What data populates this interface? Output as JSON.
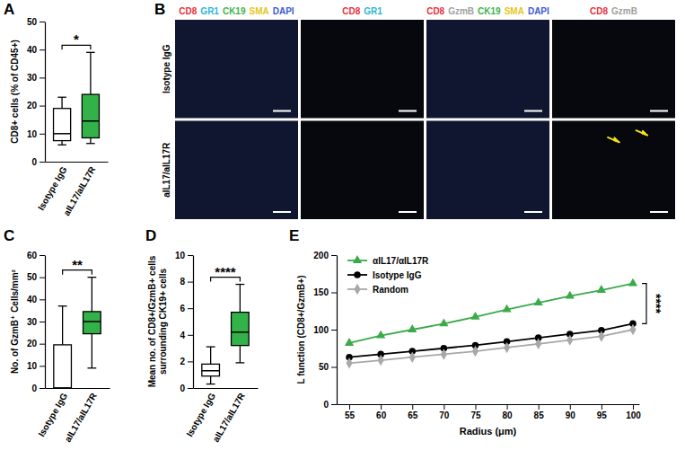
{
  "chart_data": [
    {
      "type": "box",
      "title": "A",
      "categories": [
        "Isotype IgG",
        "aIL17/aIL17R"
      ],
      "colors": [
        "#ffffff",
        "#33b24a"
      ],
      "boxes": [
        {
          "min": 6,
          "q1": 7.5,
          "median": 10,
          "q3": 19,
          "max": 23
        },
        {
          "min": 6.5,
          "q1": 8.5,
          "median": 14.5,
          "q3": 24,
          "max": 39
        }
      ],
      "ylim": [
        0,
        50
      ],
      "yticks": [
        0,
        10,
        20,
        30,
        40,
        50
      ],
      "y_label": [
        "CD8+ cells (% of CD45+)"
      ],
      "annotations": [
        "*"
      ]
    },
    {
      "type": "image",
      "title": "B",
      "columns": [
        [
          {
            "text": "CD8",
            "color": "#e8303a"
          },
          {
            "text": "GR1",
            "color": "#29b6d6"
          },
          {
            "text": "CK19",
            "color": "#3cb44b"
          },
          {
            "text": "SMA",
            "color": "#e6c619"
          },
          {
            "text": "DAPI",
            "color": "#3b5bd6"
          }
        ],
        [
          {
            "text": "CD8",
            "color": "#e8303a"
          },
          {
            "text": "GR1",
            "color": "#29b6d6"
          }
        ],
        [
          {
            "text": "CD8",
            "color": "#e8303a"
          },
          {
            "text": "GzmB",
            "color": "#a0a0a0"
          },
          {
            "text": "CK19",
            "color": "#3cb44b"
          },
          {
            "text": "SMA",
            "color": "#e6c619"
          },
          {
            "text": "DAPI",
            "color": "#3b5bd6"
          }
        ],
        [
          {
            "text": "CD8",
            "color": "#e8303a"
          },
          {
            "text": "GzmB",
            "color": "#a0a0a0"
          }
        ]
      ],
      "rows": [
        "Isotype IgG",
        "aIL17/aIL17R"
      ]
    },
    {
      "type": "box",
      "title": "C",
      "categories": [
        "Isotype IgG",
        "aIL17/aIL17R"
      ],
      "colors": [
        "#ffffff",
        "#33b24a"
      ],
      "boxes": [
        {
          "min": 0,
          "q1": 0,
          "median": 0,
          "q3": 19.5,
          "max": 37
        },
        {
          "min": 9,
          "q1": 24.5,
          "median": 30,
          "q3": 34.5,
          "max": 50
        }
      ],
      "ylim": [
        0,
        60
      ],
      "yticks": [
        0,
        10,
        20,
        30,
        40,
        50,
        60
      ],
      "y_label": [
        "No. of GzmB⁺ Cells/mm²"
      ],
      "annotations": [
        "**"
      ]
    },
    {
      "type": "box",
      "title": "D",
      "categories": [
        "Isotype IgG",
        "aIL17/aIL17R"
      ],
      "colors": [
        "#ffffff",
        "#33b24a"
      ],
      "boxes": [
        {
          "min": 0.3,
          "q1": 0.9,
          "median": 1.3,
          "q3": 1.8,
          "max": 3.1
        },
        {
          "min": 1.9,
          "q1": 3.2,
          "median": 4.2,
          "q3": 5.7,
          "max": 7.8
        }
      ],
      "ylim": [
        0,
        10
      ],
      "yticks": [
        0,
        2,
        4,
        6,
        8,
        10
      ],
      "y_label": [
        "Mean no. of CD8+/GzmB+ cells",
        "surrounding CK19+ cells"
      ],
      "annotations": [
        "****"
      ]
    },
    {
      "type": "line",
      "title": "E",
      "x": [
        55,
        60,
        65,
        70,
        75,
        80,
        85,
        90,
        95,
        100
      ],
      "series": [
        {
          "name": "αIL17/αIL17R",
          "color": "#3aaa4a",
          "marker": "triangle",
          "values": [
            82,
            92,
            100,
            108,
            117,
            127,
            136,
            145,
            153,
            162
          ]
        },
        {
          "name": "Isotype IgG",
          "color": "#000000",
          "marker": "circle",
          "values": [
            63,
            67,
            71,
            75,
            79,
            84,
            89,
            94,
            99,
            108
          ]
        },
        {
          "name": "Random",
          "color": "#a8a8a8",
          "marker": "diamond",
          "values": [
            55,
            59,
            63,
            67,
            71,
            76,
            81,
            86,
            91,
            100
          ]
        }
      ],
      "xlim": [
        53,
        101
      ],
      "xticks": [
        55,
        60,
        65,
        70,
        75,
        80,
        85,
        90,
        95,
        100
      ],
      "ylim": [
        0,
        200
      ],
      "yticks": [
        0,
        50,
        100,
        150,
        200
      ],
      "x_label": "Radius (μm)",
      "y_label": [
        "L function (CD8+/GzmB+)"
      ],
      "legend": "top-left",
      "annotations": [
        "****"
      ]
    }
  ]
}
